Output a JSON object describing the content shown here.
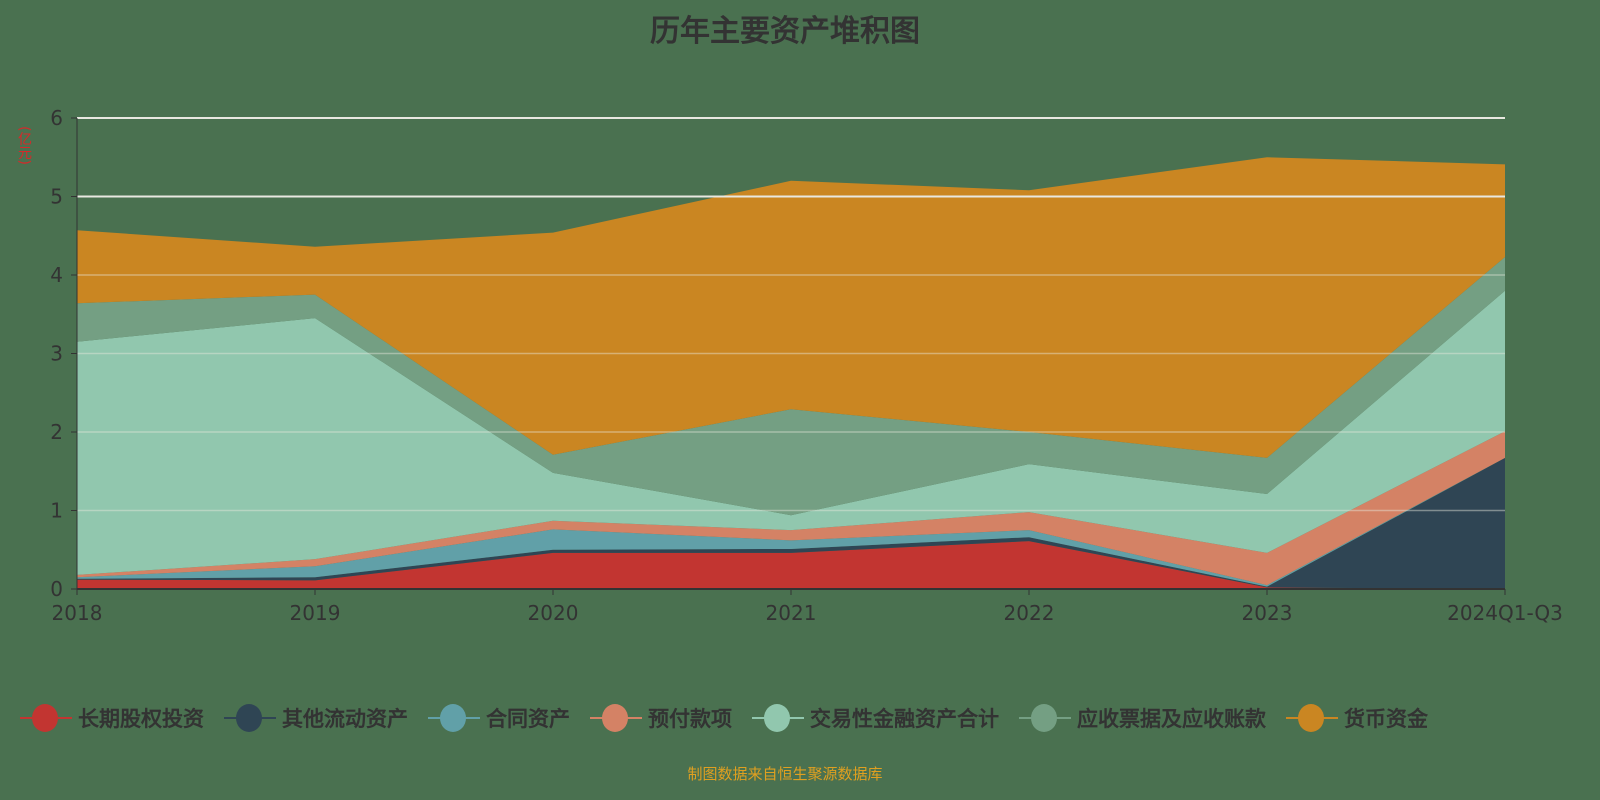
{
  "chart_data": {
    "type": "area",
    "stacked": true,
    "title": "历年主要资产堆积图",
    "ylabel": "(亿元)",
    "xlabel": "",
    "categories": [
      "2018",
      "2019",
      "2020",
      "2021",
      "2022",
      "2023",
      "2024Q1-Q3"
    ],
    "ylim": [
      0,
      6
    ],
    "yticks": [
      0,
      1,
      2,
      3,
      4,
      5,
      6
    ],
    "grid": true,
    "legend_position": "bottom",
    "series": [
      {
        "name": "长期股权投资",
        "color": "#c23531",
        "values": [
          0.12,
          0.11,
          0.46,
          0.46,
          0.61,
          0.02,
          0
        ]
      },
      {
        "name": "其他流动资产",
        "color": "#2f4554",
        "values": [
          0.01,
          0.04,
          0.04,
          0.05,
          0.05,
          0.01,
          1.67
        ]
      },
      {
        "name": "合同资产",
        "color": "#61a0a8",
        "values": [
          0.02,
          0.14,
          0.26,
          0.11,
          0.09,
          0.02,
          0
        ]
      },
      {
        "name": "预付款项",
        "color": "#d48265",
        "values": [
          0.03,
          0.09,
          0.11,
          0.13,
          0.23,
          0.41,
          0.34
        ]
      },
      {
        "name": "交易性金融资产合计",
        "color": "#91c7ae",
        "values": [
          2.97,
          3.07,
          0.61,
          0.19,
          0.61,
          0.75,
          1.79
        ]
      },
      {
        "name": "应收票据及应收账款",
        "color": "#749f83",
        "values": [
          0.49,
          0.3,
          0.23,
          1.35,
          0.41,
          0.46,
          0.43
        ]
      },
      {
        "name": "货币资金",
        "color": "#ca8622",
        "values": [
          0.93,
          0.61,
          2.83,
          2.91,
          3.08,
          3.83,
          1.18
        ]
      }
    ]
  },
  "footer": "制图数据来自恒生聚源数据库"
}
